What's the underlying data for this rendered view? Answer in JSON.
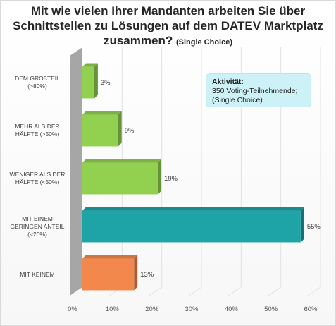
{
  "chart_data": {
    "type": "bar",
    "orientation": "horizontal",
    "title": "Mit wie vielen Ihrer Mandanten arbeiten Sie über Schnittstellen zu Lösungen auf dem DATEV Marktplatz zusammen?",
    "subtitle": "(Single Choice)",
    "categories": [
      [
        "DEM GROßTEIL",
        "(>80%)"
      ],
      [
        "MEHR ALS DER",
        "HÄLFTE (>50%)"
      ],
      [
        "WENIGER ALS DER",
        "HÄLFTE (<50%)"
      ],
      [
        "MIT EINEM",
        "GERINGEN ANTEIL",
        "(<20%)"
      ],
      [
        "MIT KEINEM"
      ]
    ],
    "values": [
      3,
      9,
      19,
      55,
      13
    ],
    "value_labels": [
      "3%",
      "9%",
      "19%",
      "55%",
      "13%"
    ],
    "colors": [
      "#92d050",
      "#92d050",
      "#92d050",
      "#1ea3a6",
      "#f2884b"
    ],
    "xlim": [
      0,
      60
    ],
    "ticks": [
      "0%",
      "10%",
      "20%",
      "30%",
      "40%",
      "50%",
      "60%"
    ],
    "grid": true,
    "legend": "none"
  },
  "info_box": {
    "heading": "Aktivität:",
    "line1": "350 Voting-Teilnehmende;",
    "line2": "(Single Choice)"
  }
}
